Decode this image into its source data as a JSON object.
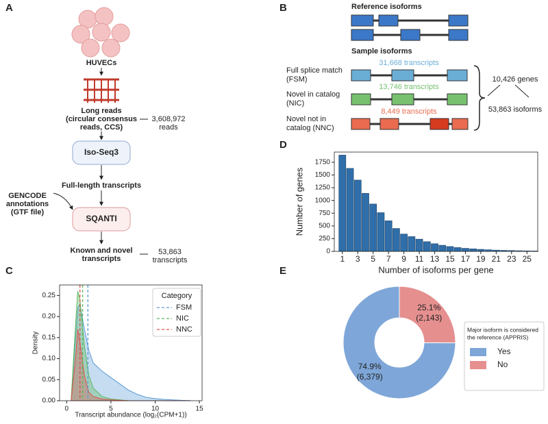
{
  "diagram_a": {
    "panel": "A",
    "cells": "HUVECs",
    "long_reads": [
      "Long reads",
      "(circular consensus",
      "reads, CCS)"
    ],
    "reads_count": [
      "3,608,972",
      "reads"
    ],
    "isoseq": "Iso-Seq3",
    "full_length": "Full-length transcripts",
    "gencode": [
      "GENCODE",
      "annotations",
      "(GTF file)"
    ],
    "sqanti": "SQANTI",
    "known_novel": [
      "Known and novel",
      "transcripts"
    ],
    "transcripts_count": [
      "53,863",
      "transcripts"
    ]
  },
  "diagram_b": {
    "panel": "B",
    "reference_title": "Reference isoforms",
    "sample_title": "Sample isoforms",
    "rows": [
      {
        "label": [
          "Full splice match",
          "(FSM)"
        ],
        "count": "31,668 transcripts",
        "color": "#6aaed6"
      },
      {
        "label": [
          "Novel in catalog",
          "(NIC)"
        ],
        "count": "13,746 transcripts",
        "color": "#77c16f"
      },
      {
        "label": [
          "Novel not in",
          "catalog (NNC)"
        ],
        "count": "8,449 transcripts",
        "color": "#ea6b4f"
      }
    ],
    "genes": "10,426 genes",
    "isoforms": "53,863 isoforms"
  },
  "chart_data": [
    {
      "type": "density",
      "panel": "C",
      "xlabel": "Transcript abundance (log₂(CPM+1))",
      "ylabel": "Density",
      "x": [
        0.5,
        1,
        1.25,
        1.5,
        2,
        2.5,
        3,
        4,
        5,
        6,
        7,
        8,
        9,
        10,
        11,
        12,
        13,
        14
      ],
      "series": [
        {
          "name": "FSM",
          "color": "#5b9bd5",
          "median": 2.4,
          "values": [
            0,
            0.15,
            0.22,
            0.23,
            0.17,
            0.12,
            0.09,
            0.07,
            0.055,
            0.04,
            0.025,
            0.015,
            0.008,
            0.005,
            0.003,
            0.002,
            0.001,
            0.0005
          ]
        },
        {
          "name": "NIC",
          "color": "#5cb85c",
          "median": 1.8,
          "values": [
            0,
            0.18,
            0.26,
            0.24,
            0.13,
            0.06,
            0.03,
            0.01,
            0.004,
            0.002,
            0,
            0,
            0,
            0,
            0,
            0,
            0,
            0
          ]
        },
        {
          "name": "NNC",
          "color": "#d9534f",
          "median": 1.5,
          "values": [
            0,
            0.1,
            0.17,
            0.14,
            0.06,
            0.02,
            0.01,
            0.004,
            0.002,
            0.001,
            0,
            0,
            0,
            0,
            0,
            0,
            0,
            0
          ]
        }
      ],
      "xlim": [
        -0.8,
        15.3
      ],
      "xticks": [
        0,
        5,
        10,
        15
      ],
      "ylim": [
        0,
        0.275
      ],
      "yticks": [
        {
          "value": 0,
          "label": "0.00"
        },
        {
          "value": 0.05,
          "label": "0.05"
        },
        {
          "value": 0.1,
          "label": "0.10"
        },
        {
          "value": 0.15,
          "label": "0.15"
        },
        {
          "value": 0.2,
          "label": "0.20"
        },
        {
          "value": 0.25,
          "label": "0.25"
        }
      ],
      "legend_title": "Category",
      "legend": "upper right"
    },
    {
      "type": "bar",
      "panel": "D",
      "xlabel": "Number of isoforms per gene",
      "ylabel": "Number of genes",
      "color": "#2f6ea9",
      "x": [
        1,
        2,
        3,
        4,
        5,
        6,
        7,
        8,
        9,
        10,
        11,
        12,
        13,
        14,
        15,
        16,
        17,
        18,
        19,
        20,
        21,
        22,
        23,
        24,
        25,
        26
      ],
      "values": [
        1890,
        1630,
        1400,
        1140,
        930,
        760,
        600,
        450,
        340,
        290,
        240,
        190,
        150,
        120,
        95,
        75,
        60,
        50,
        40,
        32,
        25,
        20,
        17,
        13,
        10,
        8
      ],
      "xlim": [
        -0.05,
        26.4
      ],
      "xticks": [
        1,
        3,
        5,
        7,
        9,
        11,
        13,
        15,
        17,
        19,
        21,
        23,
        25
      ],
      "ylim": [
        0,
        1950
      ],
      "yticks": [
        0,
        250,
        500,
        750,
        1000,
        1250,
        1500,
        1750
      ]
    },
    {
      "type": "pie",
      "panel": "E",
      "donut": true,
      "startangle": 90,
      "counterclock": true,
      "categories": [
        "Yes",
        "No"
      ],
      "values": [
        74.9,
        25.1
      ],
      "value_labels": [
        "74.9%",
        "25.1%"
      ],
      "counts": [
        6379,
        2143
      ],
      "count_labels": [
        "(6,379)",
        "(2,143)"
      ],
      "colors": [
        "#7ea6d8",
        "#e58f8f"
      ],
      "legend_title": [
        "Major isoform is considered",
        "the reference (APPRIS)"
      ]
    }
  ]
}
